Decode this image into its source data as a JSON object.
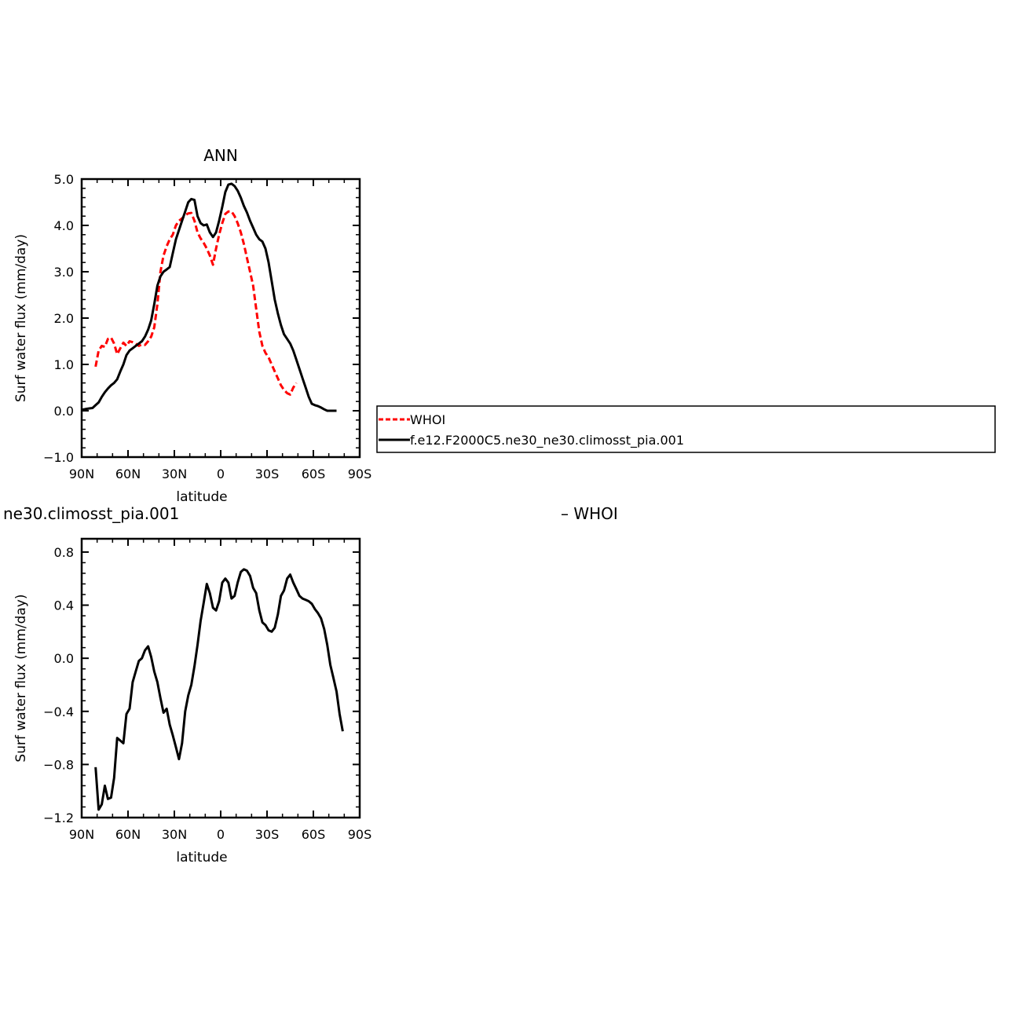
{
  "chart_data": [
    {
      "type": "line",
      "title": "ANN",
      "xlabel": "latitude",
      "ylabel": "Surf water flux (mm/day)",
      "xlim": [
        90,
        -90
      ],
      "ylim": [
        -1.0,
        5.0
      ],
      "x_ticks": [
        {
          "value": 90,
          "label": "90N"
        },
        {
          "value": 60,
          "label": "60N"
        },
        {
          "value": 30,
          "label": "30N"
        },
        {
          "value": 0,
          "label": "0"
        },
        {
          "value": -30,
          "label": "30S"
        },
        {
          "value": -60,
          "label": "60S"
        },
        {
          "value": -90,
          "label": "90S"
        }
      ],
      "y_ticks": [
        {
          "value": -1.0,
          "label": "−1.0"
        },
        {
          "value": 0.0,
          "label": "0.0"
        },
        {
          "value": 1.0,
          "label": "1.0"
        },
        {
          "value": 2.0,
          "label": "2.0"
        },
        {
          "value": 3.0,
          "label": "3.0"
        },
        {
          "value": 4.0,
          "label": "4.0"
        },
        {
          "value": 5.0,
          "label": "5.0"
        }
      ],
      "grid": false,
      "legend_position": "right",
      "series": [
        {
          "name": "WHOI",
          "color": "#ff0000",
          "style": "dashed",
          "x": [
            81,
            79,
            77,
            75,
            73,
            71,
            69,
            67,
            65,
            63,
            61,
            59,
            57,
            55,
            53,
            51,
            49,
            47,
            45,
            43,
            41,
            39,
            37,
            35,
            33,
            31,
            29,
            27,
            25,
            23,
            21,
            19,
            17,
            15,
            13,
            11,
            9,
            7,
            5,
            3,
            1,
            -1,
            -3,
            -5,
            -7,
            -9,
            -11,
            -13,
            -15,
            -17,
            -19,
            -21,
            -23,
            -25,
            -27,
            -29,
            -31,
            -33,
            -35,
            -37,
            -39,
            -41,
            -43,
            -45,
            -47,
            -49,
            -51,
            -53,
            -55,
            -57,
            -59,
            -61,
            -63,
            -65,
            -67,
            -69,
            -71,
            -73,
            -75,
            -77,
            -79
          ],
          "y": [
            0.95,
            1.3,
            1.4,
            1.38,
            1.55,
            1.58,
            1.45,
            1.22,
            1.35,
            1.47,
            1.4,
            1.5,
            1.48,
            1.45,
            1.4,
            1.43,
            1.42,
            1.5,
            1.6,
            1.8,
            2.3,
            3.0,
            3.35,
            3.55,
            3.7,
            3.8,
            4.0,
            4.1,
            4.15,
            4.22,
            4.26,
            4.27,
            4.1,
            3.85,
            3.72,
            3.62,
            3.5,
            3.35,
            3.15,
            3.5,
            3.8,
            4.05,
            4.25,
            4.3,
            4.3,
            4.2,
            4.05,
            3.85,
            3.6,
            3.3,
            3.0,
            2.7,
            2.2,
            1.7,
            1.4,
            1.25,
            1.15,
            1.0,
            0.85,
            0.7,
            0.55,
            0.45,
            0.38,
            0.35,
            0.5,
            0.6,
            null,
            null,
            null,
            null,
            null,
            null,
            null,
            null,
            null,
            null,
            null,
            null,
            null,
            null,
            null
          ]
        },
        {
          "name": "f.e12.F2000C5.ne30_ne30.climosst_pia.001",
          "color": "#000000",
          "style": "solid",
          "x": [
            90,
            87,
            85,
            83,
            81,
            79,
            77,
            75,
            73,
            71,
            69,
            67,
            65,
            63,
            61,
            59,
            57,
            55,
            53,
            51,
            49,
            47,
            45,
            43,
            41,
            39,
            37,
            35,
            33,
            31,
            29,
            27,
            25,
            23,
            21,
            19,
            17,
            15,
            13,
            11,
            9,
            7,
            5,
            3,
            1,
            -1,
            -3,
            -5,
            -7,
            -9,
            -11,
            -13,
            -15,
            -17,
            -19,
            -21,
            -23,
            -25,
            -27,
            -29,
            -31,
            -33,
            -35,
            -37,
            -39,
            -41,
            -43,
            -45,
            -47,
            -49,
            -51,
            -53,
            -55,
            -57,
            -59,
            -61,
            -63,
            -65,
            -67,
            -69,
            -71,
            -73,
            -75,
            -77,
            -79,
            -81,
            -83,
            -85,
            -87,
            -90
          ],
          "y": [
            0.02,
            0.04,
            0.05,
            0.06,
            0.12,
            0.18,
            0.3,
            0.4,
            0.48,
            0.55,
            0.6,
            0.68,
            0.85,
            1.0,
            1.2,
            1.3,
            1.35,
            1.4,
            1.45,
            1.5,
            1.6,
            1.75,
            1.95,
            2.3,
            2.7,
            2.9,
            3.0,
            3.05,
            3.1,
            3.4,
            3.7,
            3.9,
            4.1,
            4.3,
            4.5,
            4.57,
            4.55,
            4.2,
            4.05,
            4.0,
            4.02,
            3.85,
            3.75,
            3.85,
            4.1,
            4.4,
            4.72,
            4.88,
            4.9,
            4.85,
            4.75,
            4.6,
            4.42,
            4.28,
            4.1,
            3.95,
            3.8,
            3.7,
            3.65,
            3.5,
            3.2,
            2.8,
            2.4,
            2.1,
            1.85,
            1.65,
            1.55,
            1.45,
            1.3,
            1.1,
            0.9,
            0.7,
            0.5,
            0.3,
            0.15,
            0.12,
            0.1,
            0.07,
            0.03,
            0.0,
            0.0,
            0.0,
            0.0,
            null,
            null,
            null,
            null,
            null,
            null,
            null
          ]
        }
      ]
    },
    {
      "type": "line",
      "title": "ne30.climosst_pia.001",
      "title_right": "– WHOI",
      "xlabel": "latitude",
      "ylabel": "Surf water flux (mm/day)",
      "xlim": [
        90,
        -90
      ],
      "ylim": [
        -1.2,
        0.9
      ],
      "x_ticks": [
        {
          "value": 90,
          "label": "90N"
        },
        {
          "value": 60,
          "label": "60N"
        },
        {
          "value": 30,
          "label": "30N"
        },
        {
          "value": 0,
          "label": "0"
        },
        {
          "value": -30,
          "label": "30S"
        },
        {
          "value": -60,
          "label": "60S"
        },
        {
          "value": -90,
          "label": "90S"
        }
      ],
      "y_ticks": [
        {
          "value": -1.2,
          "label": "−1.2"
        },
        {
          "value": -0.8,
          "label": "−0.8"
        },
        {
          "value": -0.4,
          "label": "−0.4"
        },
        {
          "value": 0.0,
          "label": "0.0"
        },
        {
          "value": 0.4,
          "label": "0.4"
        },
        {
          "value": 0.8,
          "label": "0.8"
        }
      ],
      "grid": false,
      "series": [
        {
          "color": "#000000",
          "style": "solid",
          "x": [
            81,
            79,
            77,
            75,
            73,
            71,
            69,
            67,
            65,
            63,
            61,
            59,
            57,
            55,
            53,
            51,
            49,
            47,
            45,
            43,
            41,
            39,
            37,
            35,
            33,
            31,
            29,
            27,
            25,
            23,
            21,
            19,
            17,
            15,
            13,
            11,
            9,
            7,
            5,
            3,
            1,
            -1,
            -3,
            -5,
            -7,
            -9,
            -11,
            -13,
            -15,
            -17,
            -19,
            -21,
            -23,
            -25,
            -27,
            -29,
            -31,
            -33,
            -35,
            -37,
            -39,
            -41,
            -43,
            -45,
            -47,
            -49,
            -51,
            -53,
            -55,
            -57,
            -59,
            -61,
            -63,
            -65,
            -67,
            -69,
            -71,
            -73,
            -75,
            -77,
            -79
          ],
          "y": [
            -0.82,
            -1.14,
            -1.1,
            -0.96,
            -1.06,
            -1.05,
            -0.9,
            -0.6,
            -0.62,
            -0.64,
            -0.42,
            -0.38,
            -0.18,
            -0.1,
            -0.02,
            0.0,
            0.06,
            0.09,
            0.01,
            -0.1,
            -0.18,
            -0.3,
            -0.41,
            -0.38,
            -0.5,
            -0.58,
            -0.67,
            -0.76,
            -0.64,
            -0.4,
            -0.28,
            -0.2,
            -0.06,
            0.1,
            0.28,
            0.42,
            0.56,
            0.49,
            0.38,
            0.36,
            0.43,
            0.57,
            0.6,
            0.57,
            0.45,
            0.47,
            0.57,
            0.65,
            0.67,
            0.66,
            0.62,
            0.53,
            0.49,
            0.36,
            0.27,
            0.25,
            0.21,
            0.2,
            0.23,
            0.33,
            0.47,
            0.51,
            0.6,
            0.63,
            0.57,
            0.52,
            0.47,
            0.45,
            0.44,
            0.43,
            0.41,
            0.37,
            0.34,
            0.3,
            0.22,
            0.1,
            -0.05,
            -0.15,
            -0.25,
            -0.42,
            -0.55
          ]
        }
      ]
    }
  ],
  "legend": {
    "entries": [
      {
        "label": "WHOI",
        "color": "#ff0000",
        "style": "dashed"
      },
      {
        "label": "f.e12.F2000C5.ne30_ne30.climosst_pia.001",
        "color": "#000000",
        "style": "solid"
      }
    ]
  }
}
